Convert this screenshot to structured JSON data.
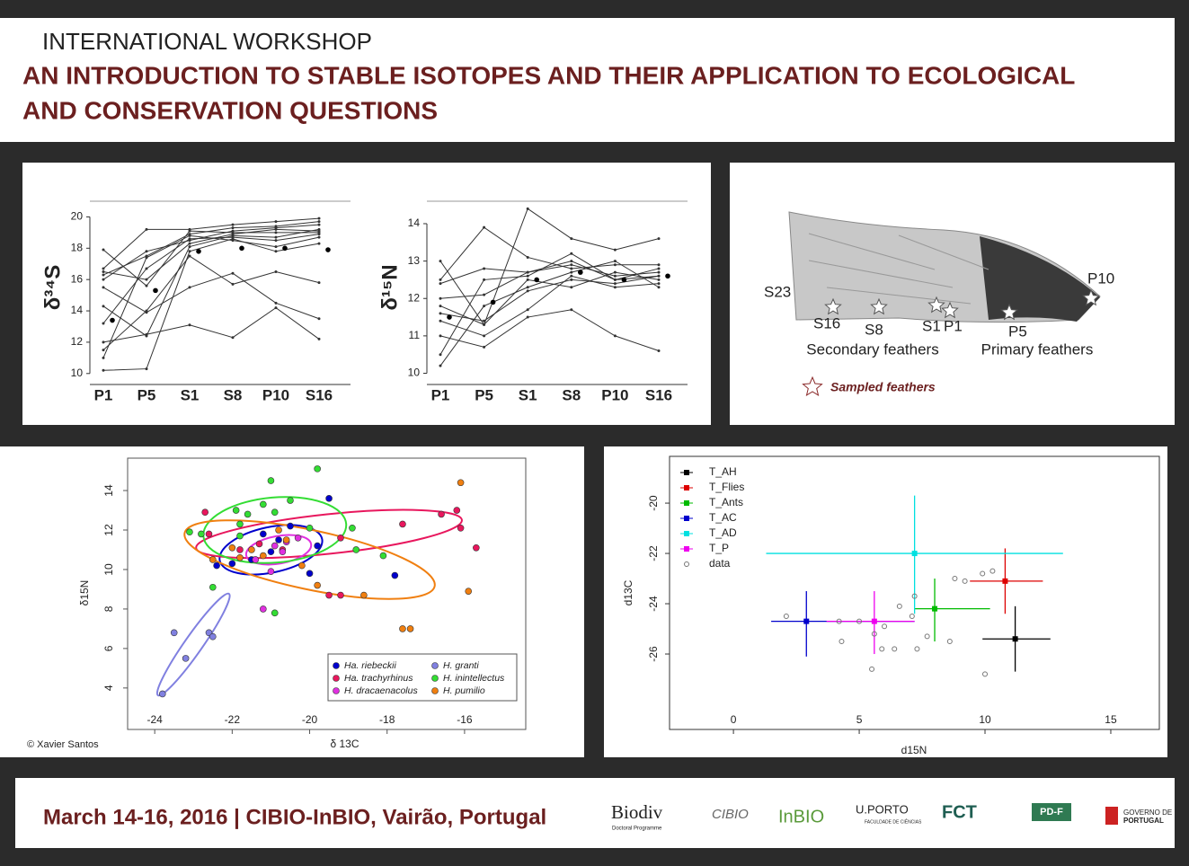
{
  "header": {
    "kicker": "INTERNATIONAL WORKSHOP",
    "title_lines": [
      "AN INTRODUCTION TO STABLE ISOTOPES AND THEIR APPLICATION TO ECOLOGICAL",
      "AND CONSERVATION QUESTIONS"
    ]
  },
  "chart_data": [
    {
      "type": "line",
      "ylabel": "δ³⁴S",
      "categories": [
        "P1",
        "P5",
        "S1",
        "S8",
        "P10",
        "S16"
      ],
      "ylim": [
        9.3,
        21.0
      ],
      "yticks": [
        10,
        12,
        14,
        16,
        18,
        20
      ],
      "series": [
        {
          "color": "#333333",
          "values": [
            17.9,
            15.6,
            19.1,
            19.0,
            19.0,
            19.0
          ]
        },
        {
          "color": "#333333",
          "values": [
            16.7,
            19.2,
            19.2,
            19.5,
            19.7,
            19.9
          ]
        },
        {
          "color": "#333333",
          "values": [
            16.3,
            17.5,
            18.9,
            19.3,
            19.4,
            19.7
          ]
        },
        {
          "color": "#333333",
          "values": [
            16.0,
            17.8,
            18.5,
            19.1,
            19.3,
            19.5
          ]
        },
        {
          "color": "#333333",
          "values": [
            15.5,
            13.9,
            15.5,
            16.4,
            14.5,
            13.5
          ]
        },
        {
          "color": "#333333",
          "values": [
            14.3,
            12.4,
            18.1,
            18.8,
            18.7,
            19.2
          ]
        },
        {
          "color": "#333333",
          "values": [
            13.2,
            16.7,
            18.6,
            18.7,
            18.5,
            18.9
          ]
        },
        {
          "color": "#333333",
          "values": [
            12.0,
            12.5,
            13.1,
            12.3,
            14.2,
            12.2
          ]
        },
        {
          "color": "#333333",
          "values": [
            11.5,
            14.0,
            17.5,
            15.7,
            16.5,
            15.8
          ]
        },
        {
          "color": "#333333",
          "values": [
            11.0,
            17.4,
            18.8,
            18.5,
            18.1,
            18.7
          ]
        },
        {
          "color": "#333333",
          "values": [
            10.2,
            10.3,
            17.8,
            18.6,
            17.8,
            18.3
          ]
        },
        {
          "color": "#333333",
          "values": [
            16.5,
            16.0,
            18.3,
            18.9,
            19.2,
            19.1
          ]
        },
        {
          "color": "#000000",
          "style": "dots",
          "values": [
            13.4,
            15.3,
            17.8,
            18.0,
            18.0,
            17.9
          ]
        }
      ]
    },
    {
      "type": "line",
      "ylabel": "δ¹⁵N",
      "categories": [
        "P1",
        "P5",
        "S1",
        "S8",
        "P10",
        "S16"
      ],
      "ylim": [
        9.7,
        14.6
      ],
      "yticks": [
        10,
        11,
        12,
        13,
        14
      ],
      "series": [
        {
          "color": "#333333",
          "values": [
            13.0,
            11.3,
            14.4,
            13.6,
            13.3,
            13.6
          ]
        },
        {
          "color": "#333333",
          "values": [
            12.5,
            13.9,
            13.1,
            12.8,
            12.9,
            12.9
          ]
        },
        {
          "color": "#333333",
          "values": [
            12.4,
            12.8,
            12.7,
            12.9,
            12.6,
            12.7
          ]
        },
        {
          "color": "#333333",
          "values": [
            12.0,
            12.1,
            12.7,
            13.0,
            12.5,
            12.8
          ]
        },
        {
          "color": "#333333",
          "values": [
            11.6,
            11.4,
            12.2,
            12.5,
            12.4,
            12.6
          ]
        },
        {
          "color": "#333333",
          "values": [
            11.4,
            11.0,
            11.7,
            12.6,
            12.3,
            12.4
          ]
        },
        {
          "color": "#333333",
          "values": [
            11.0,
            10.7,
            11.5,
            11.7,
            11.0,
            10.6
          ]
        },
        {
          "color": "#333333",
          "values": [
            10.5,
            12.5,
            12.6,
            13.2,
            12.5,
            12.6
          ]
        },
        {
          "color": "#333333",
          "values": [
            10.2,
            11.8,
            12.3,
            12.7,
            13.0,
            12.3
          ]
        },
        {
          "color": "#333333",
          "values": [
            11.8,
            11.3,
            12.5,
            12.3,
            12.7,
            12.5
          ]
        },
        {
          "color": "#000000",
          "style": "dots",
          "values": [
            11.5,
            11.9,
            12.5,
            12.7,
            12.5,
            12.6
          ]
        }
      ]
    },
    {
      "type": "scatter",
      "xlabel": "δ 13C",
      "ylabel": "δ15N",
      "credit": "© Xavier Santos",
      "xlim": [
        -24.7,
        -14.42
      ],
      "ylim": [
        1.9,
        15.64
      ],
      "xticks": [
        -24,
        -22,
        -20,
        -18,
        -16
      ],
      "yticks": [
        4,
        6,
        8,
        10,
        12,
        14
      ],
      "legend": "bottom-right",
      "series": [
        {
          "name": "Ha. riebeckii",
          "color": "#0000cc",
          "x": [
            -22.4,
            -21.5,
            -21.2,
            -20.8,
            -20.5,
            -20.0,
            -19.5,
            -19.8,
            -21.0,
            -17.8,
            -22.0
          ],
          "y": [
            10.2,
            10.5,
            11.8,
            11.5,
            12.2,
            9.8,
            13.6,
            11.2,
            10.9,
            9.7,
            10.3
          ],
          "ellipse": {
            "cx": -21.0,
            "cy": 11.0,
            "rx": 1.35,
            "ry": 1.15,
            "angle": 12
          }
        },
        {
          "name": "Ha. trachyrhinus",
          "color": "#e8175d",
          "x": [
            -22.7,
            -22.6,
            -21.8,
            -21.3,
            -20.7,
            -19.2,
            -16.6,
            -16.2,
            -16.1,
            -15.7,
            -17.6,
            -19.5,
            -19.2
          ],
          "y": [
            12.9,
            11.8,
            11.0,
            11.3,
            11.0,
            11.6,
            12.8,
            13.0,
            12.1,
            11.1,
            12.3,
            8.7,
            8.7
          ],
          "ellipse": {
            "cx": -19.5,
            "cy": 11.8,
            "rx": 3.45,
            "ry": 1.0,
            "angle": 6
          }
        },
        {
          "name": "H. dracaenacolus",
          "color": "#e030e0",
          "x": [
            -21.2,
            -20.9,
            -20.7,
            -20.6,
            -21.0,
            -20.3,
            -21.4
          ],
          "y": [
            8.0,
            11.2,
            10.9,
            11.4,
            9.9,
            11.6,
            10.5
          ],
          "ellipse": {
            "cx": -20.8,
            "cy": 11.0,
            "rx": 0.85,
            "ry": 0.7,
            "angle": 10
          }
        },
        {
          "name": "H. granti",
          "color": "#8080e0",
          "x": [
            -23.5,
            -23.2,
            -22.6,
            -22.5,
            -23.8
          ],
          "y": [
            6.8,
            5.5,
            6.8,
            6.6,
            3.7
          ],
          "ellipse": {
            "cx": -23.0,
            "cy": 6.2,
            "rx": 1.6,
            "ry": 0.45,
            "angle": 55
          }
        },
        {
          "name": "H. inintellectus",
          "color": "#33dd33",
          "x": [
            -23.1,
            -22.8,
            -22.5,
            -21.9,
            -21.8,
            -21.6,
            -21.2,
            -21.0,
            -20.9,
            -20.5,
            -20.0,
            -19.8,
            -18.8,
            -18.9,
            -18.1,
            -20.9,
            -21.8
          ],
          "y": [
            11.9,
            11.8,
            9.1,
            13.0,
            11.7,
            12.8,
            13.3,
            14.5,
            12.9,
            13.5,
            12.1,
            15.1,
            11.0,
            12.1,
            10.7,
            7.8,
            12.3
          ],
          "ellipse": {
            "cx": -20.9,
            "cy": 12.0,
            "rx": 1.85,
            "ry": 1.65,
            "angle": 5
          }
        },
        {
          "name": "H. pumilio",
          "color": "#f07f10",
          "x": [
            -22.5,
            -22.0,
            -21.5,
            -21.2,
            -20.8,
            -20.6,
            -20.2,
            -19.8,
            -18.6,
            -17.6,
            -17.4,
            -16.1,
            -15.9,
            -21.8
          ],
          "y": [
            10.5,
            11.1,
            11.0,
            10.7,
            12.0,
            11.5,
            10.2,
            9.2,
            8.7,
            7.0,
            7.0,
            14.4,
            8.9,
            10.6
          ],
          "ellipse": {
            "cx": -20.0,
            "cy": 10.5,
            "rx": 3.3,
            "ry": 1.5,
            "angle": -12
          }
        }
      ]
    },
    {
      "type": "errorbar",
      "xlabel": "d15N",
      "ylabel": "d13C",
      "xlim": [
        -2.54,
        16.93
      ],
      "ylim": [
        -29.0,
        -18.14
      ],
      "xticks": [
        0,
        5,
        10,
        15
      ],
      "yticks": [
        -20,
        -22,
        -24,
        -26
      ],
      "legend": "top-left",
      "series": [
        {
          "name": "T_AH",
          "color": "#000000",
          "x": 11.2,
          "y": -25.4,
          "x_range": [
            9.9,
            12.6
          ],
          "y_range": [
            -24.1,
            -26.7
          ]
        },
        {
          "name": "T_Flies",
          "color": "#dd0000",
          "x": 10.8,
          "y": -23.1,
          "x_range": [
            9.4,
            12.3
          ],
          "y_range": [
            -21.8,
            -24.4
          ]
        },
        {
          "name": "T_Ants",
          "color": "#00bb00",
          "x": 8.0,
          "y": -24.2,
          "x_range": [
            7.2,
            10.2
          ],
          "y_range": [
            -23.0,
            -25.5
          ]
        },
        {
          "name": "T_AC",
          "color": "#0000cc",
          "x": 2.9,
          "y": -24.7,
          "x_range": [
            1.5,
            7.2
          ],
          "y_range": [
            -23.5,
            -26.1
          ]
        },
        {
          "name": "T_AD",
          "color": "#00e0e0",
          "x": 7.2,
          "y": -22.0,
          "x_range": [
            1.3,
            13.1
          ],
          "y_range": [
            -19.7,
            -24.4
          ]
        },
        {
          "name": "T_P",
          "color": "#ee00ee",
          "x": 5.6,
          "y": -24.7,
          "x_range": [
            3.7,
            7.2
          ],
          "y_range": [
            -23.5,
            -26.0
          ]
        },
        {
          "name": "data",
          "color": "#777777",
          "style": "open",
          "x": [
            2.1,
            4.2,
            4.3,
            5.0,
            5.6,
            5.5,
            5.9,
            6.0,
            6.6,
            7.1,
            7.2,
            7.7,
            7.3,
            8.6,
            8.8,
            9.2,
            9.9,
            10.3,
            10.0,
            6.4
          ],
          "y": [
            -24.5,
            -24.7,
            -25.5,
            -24.7,
            -25.2,
            -26.6,
            -25.8,
            -24.9,
            -24.1,
            -24.5,
            -23.7,
            -25.3,
            -25.8,
            -25.5,
            -23.0,
            -23.1,
            -22.8,
            -22.7,
            -26.8,
            -25.8
          ]
        }
      ]
    }
  ],
  "wing": {
    "labels": [
      "S23",
      "S16",
      "S8",
      "S1",
      "P1",
      "P5",
      "P10"
    ],
    "groups": [
      "Secondary feathers",
      "Primary feathers"
    ],
    "legend": "Sampled feathers"
  },
  "footer": {
    "text": "March 14-16, 2016 | CIBIO-InBIO, Vairão, Portugal",
    "logos": [
      "Biodiv",
      "Doctoral Programme",
      "CIBIO",
      "InBIO",
      "U.PORTO",
      "FACULDADE DE CIÊNCIAS",
      "FCT",
      "PD-F",
      "GOVERNO DE",
      "PORTUGAL"
    ]
  }
}
